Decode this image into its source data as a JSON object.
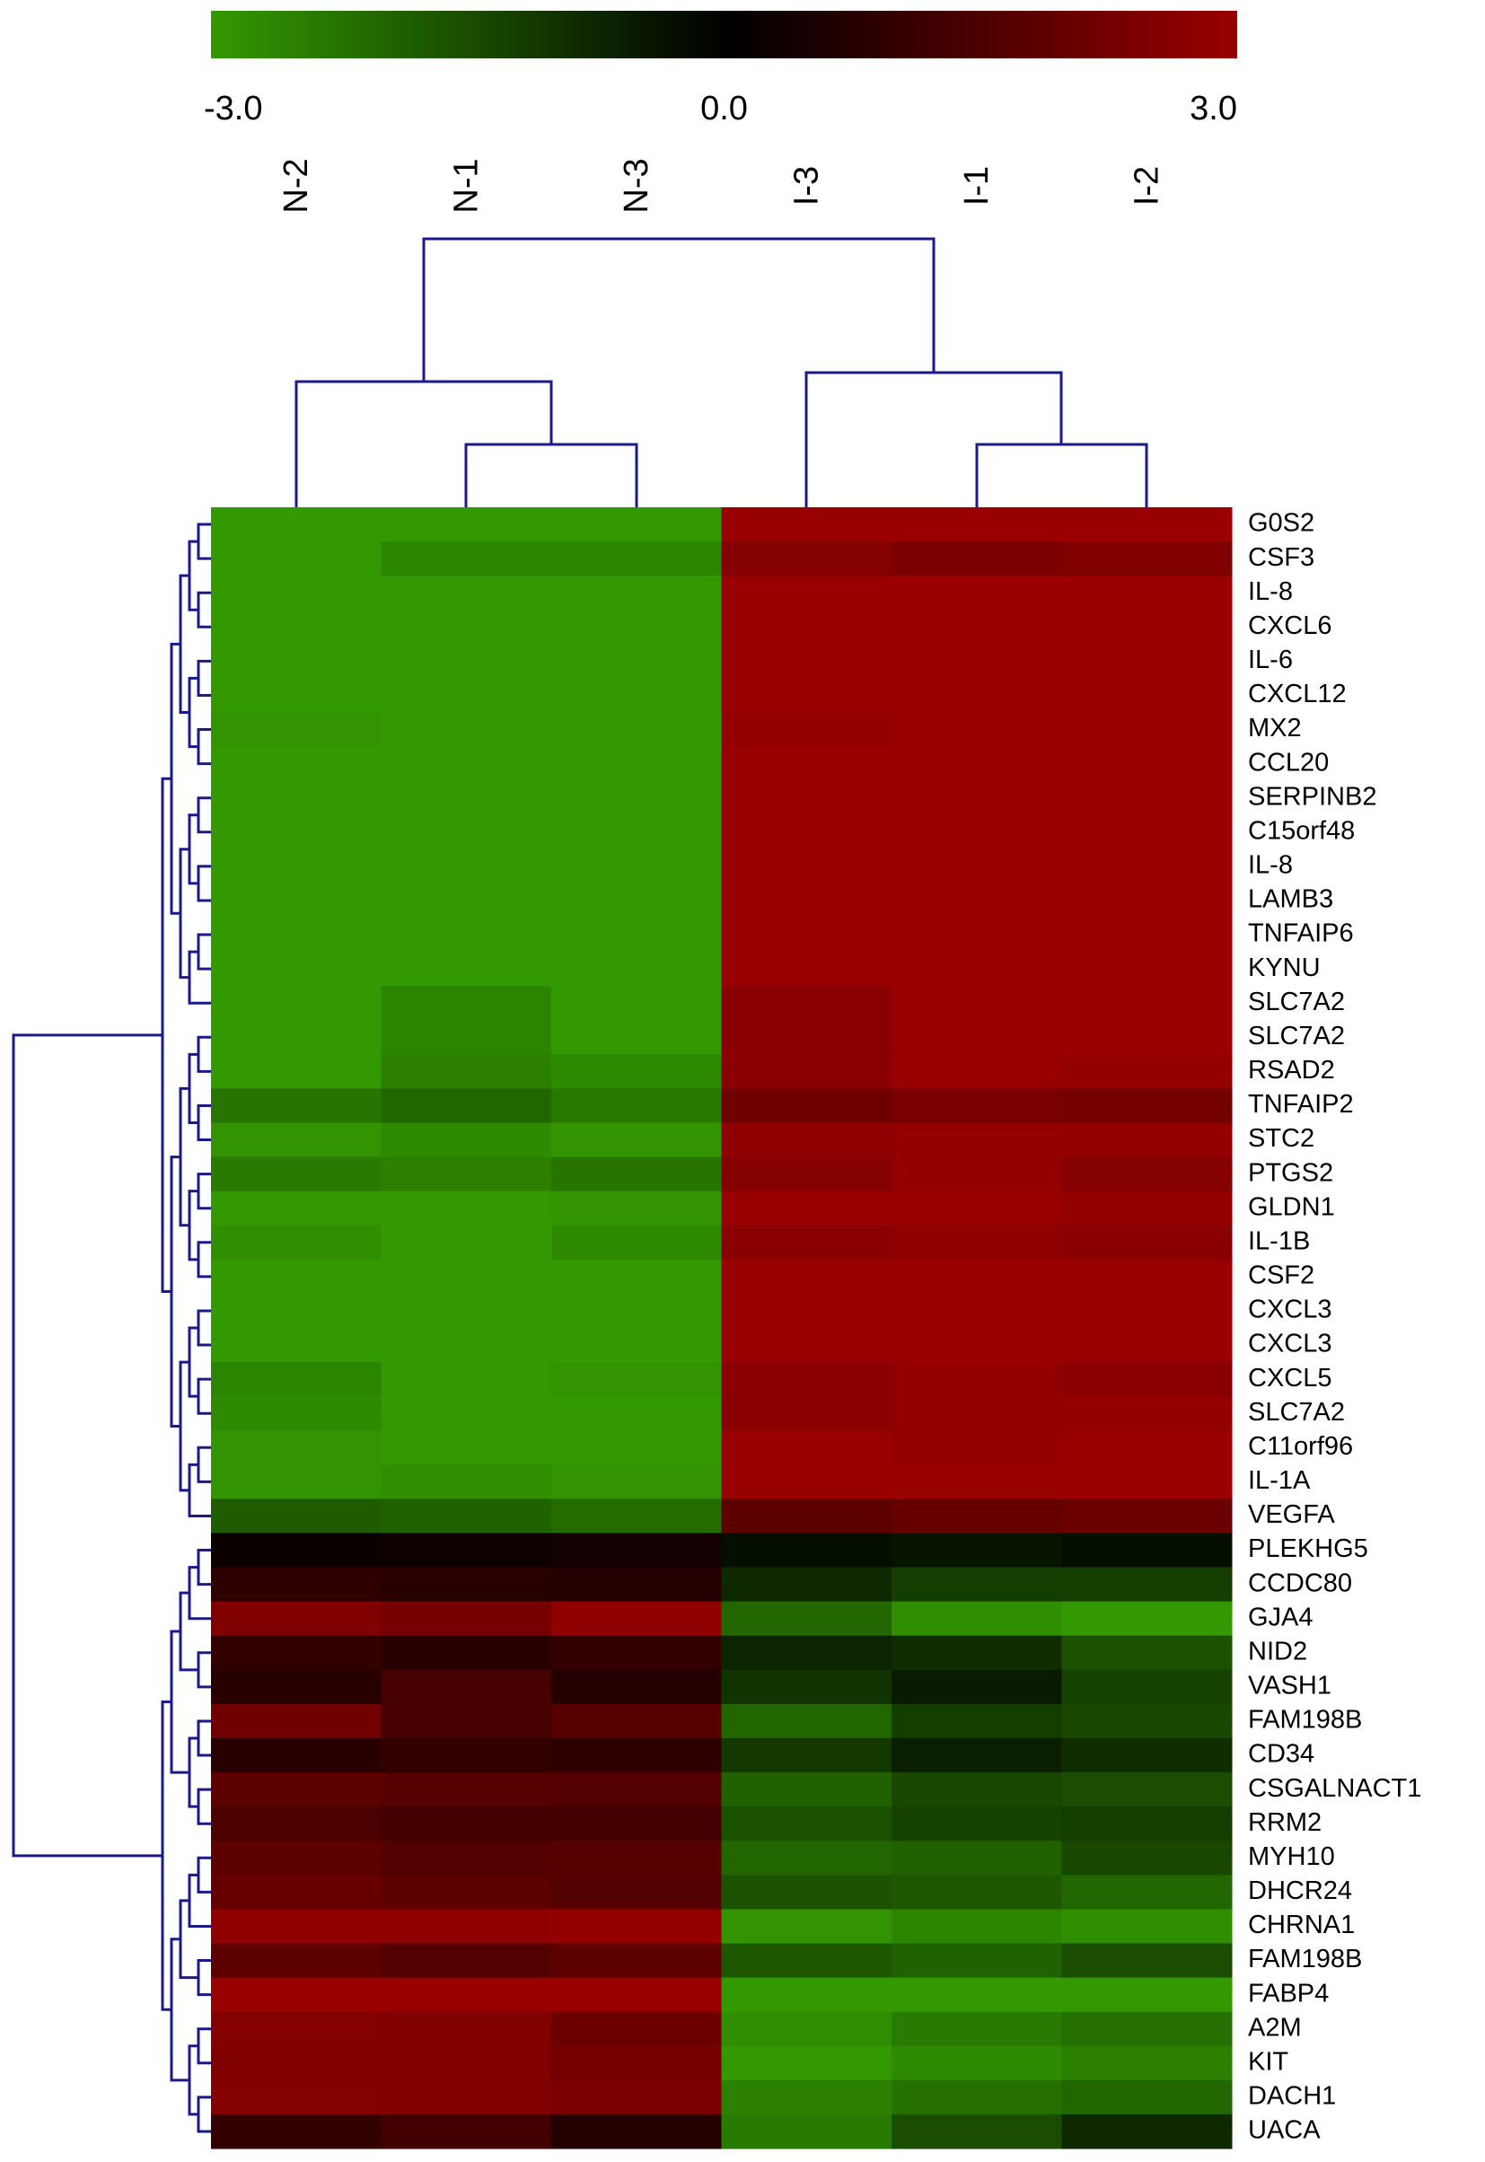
{
  "chart_data": {
    "type": "heatmap",
    "columns": [
      "N-2",
      "N-1",
      "N-3",
      "I-3",
      "I-1",
      "I-2"
    ],
    "rows": [
      "G0S2",
      "CSF3",
      "IL-8",
      "CXCL6",
      "IL-6",
      "CXCL12",
      "MX2",
      "CCL20",
      "SERPINB2",
      "C15orf48",
      "IL-8",
      "LAMB3",
      "TNFAIP6",
      "KYNU",
      "SLC7A2",
      "SLC7A2",
      "RSAD2",
      "TNFAIP2",
      "STC2",
      "PTGS2",
      "GLDN1",
      "IL-1B",
      "CSF2",
      "CXCL3",
      "CXCL3",
      "CXCL5",
      "SLC7A2",
      "C11orf96",
      "IL-1A",
      "VEGFA",
      "PLEKHG5",
      "CCDC80",
      "GJA4",
      "NID2",
      "VASH1",
      "FAM198B",
      "CD34",
      "CSGALNACT1",
      "RRM2",
      "MYH10",
      "DHCR24",
      "CHRNA1",
      "FAM198B",
      "FABP4",
      "A2M",
      "KIT",
      "DACH1",
      "UACA"
    ],
    "values": [
      [
        -3,
        -3,
        -3,
        3,
        3,
        3
      ],
      [
        -3,
        -2.6,
        -2.6,
        2.6,
        2.4,
        2.5
      ],
      [
        -3,
        -3,
        -3,
        3,
        3,
        3
      ],
      [
        -3,
        -3,
        -3,
        3,
        3,
        3
      ],
      [
        -3,
        -3,
        -3,
        3,
        3,
        3
      ],
      [
        -3,
        -3,
        -3,
        3,
        3,
        3
      ],
      [
        -2.9,
        -3,
        -3,
        2.9,
        3,
        3
      ],
      [
        -3,
        -3,
        -3,
        3,
        3,
        3
      ],
      [
        -3,
        -3,
        -3,
        3,
        3,
        3
      ],
      [
        -3,
        -3,
        -3,
        3,
        3,
        3
      ],
      [
        -3,
        -3,
        -3,
        3,
        3,
        3
      ],
      [
        -3,
        -3,
        -3,
        3,
        3,
        3
      ],
      [
        -3,
        -3,
        -3,
        3,
        3,
        3
      ],
      [
        -3,
        -3,
        -3,
        3,
        3,
        3
      ],
      [
        -3,
        -2.6,
        -3,
        2.7,
        3,
        3
      ],
      [
        -3,
        -2.6,
        -3,
        2.7,
        3,
        3
      ],
      [
        -3,
        -2.5,
        -2.7,
        2.7,
        3,
        2.9
      ],
      [
        -2.3,
        -2,
        -2.4,
        2.2,
        2.4,
        2.3
      ],
      [
        -2.9,
        -2.7,
        -2.9,
        2.8,
        2.9,
        2.9
      ],
      [
        -2.4,
        -2.5,
        -2.3,
        2.6,
        2.9,
        2.6
      ],
      [
        -3,
        -3,
        -2.9,
        3,
        3,
        2.9
      ],
      [
        -2.8,
        -3,
        -2.7,
        2.7,
        2.8,
        2.7
      ],
      [
        -3,
        -3,
        -3,
        3,
        3,
        3
      ],
      [
        -3,
        -3,
        -3,
        3,
        3,
        3
      ],
      [
        -3,
        -3,
        -3,
        3,
        3,
        3
      ],
      [
        -2.6,
        -3,
        -2.9,
        2.7,
        2.9,
        2.7
      ],
      [
        -2.7,
        -3,
        -3,
        2.7,
        2.9,
        2.9
      ],
      [
        -2.9,
        -3,
        -3,
        3,
        2.9,
        3
      ],
      [
        -2.9,
        -2.8,
        -2.9,
        3,
        3,
        3
      ],
      [
        -1.8,
        -1.9,
        -2.1,
        1.8,
        2,
        2.1
      ],
      [
        0.2,
        0.3,
        0.4,
        -0.3,
        -0.4,
        -0.3
      ],
      [
        0.9,
        0.8,
        0.7,
        -0.8,
        -1.2,
        -1.2
      ],
      [
        2.5,
        2.3,
        2.8,
        -2,
        -2.8,
        -3
      ],
      [
        1,
        0.8,
        1,
        -0.7,
        -0.9,
        -1.6
      ],
      [
        0.8,
        1.4,
        0.7,
        -1,
        -0.5,
        -1.3
      ],
      [
        2.2,
        1.4,
        1.7,
        -2,
        -1.2,
        -1.4
      ],
      [
        0.8,
        1,
        0.9,
        -1.1,
        -0.6,
        -0.9
      ],
      [
        1.8,
        1.7,
        1.6,
        -1.9,
        -1.4,
        -1.5
      ],
      [
        1.5,
        1.3,
        1.3,
        -1.6,
        -1.3,
        -1.2
      ],
      [
        1.8,
        1.6,
        1.7,
        -2,
        -1.9,
        -1.4
      ],
      [
        2,
        1.8,
        1.6,
        -1.6,
        -1.7,
        -2
      ],
      [
        2.8,
        2.8,
        2.9,
        -2.9,
        -2.6,
        -2.8
      ],
      [
        1.8,
        1.6,
        1.8,
        -1.7,
        -1.9,
        -1.5
      ],
      [
        3,
        3,
        3,
        -3,
        -3,
        -3
      ],
      [
        2.6,
        2.5,
        2.1,
        -2.8,
        -2.4,
        -2.2
      ],
      [
        2.5,
        2.5,
        2.3,
        -3,
        -2.7,
        -2.5
      ],
      [
        2.6,
        2.5,
        2.4,
        -2.5,
        -2.2,
        -2
      ],
      [
        1,
        1.3,
        0.7,
        -2.4,
        -1.5,
        -0.8
      ]
    ],
    "clim": [
      -3,
      3
    ],
    "colorbar_ticks": [
      {
        "value": -3,
        "label": "-3.0"
      },
      {
        "value": 0,
        "label": "0.0"
      },
      {
        "value": 3,
        "label": "3.0"
      }
    ],
    "colors": {
      "low": "#339900",
      "mid": "#000000",
      "high": "#990000"
    }
  }
}
